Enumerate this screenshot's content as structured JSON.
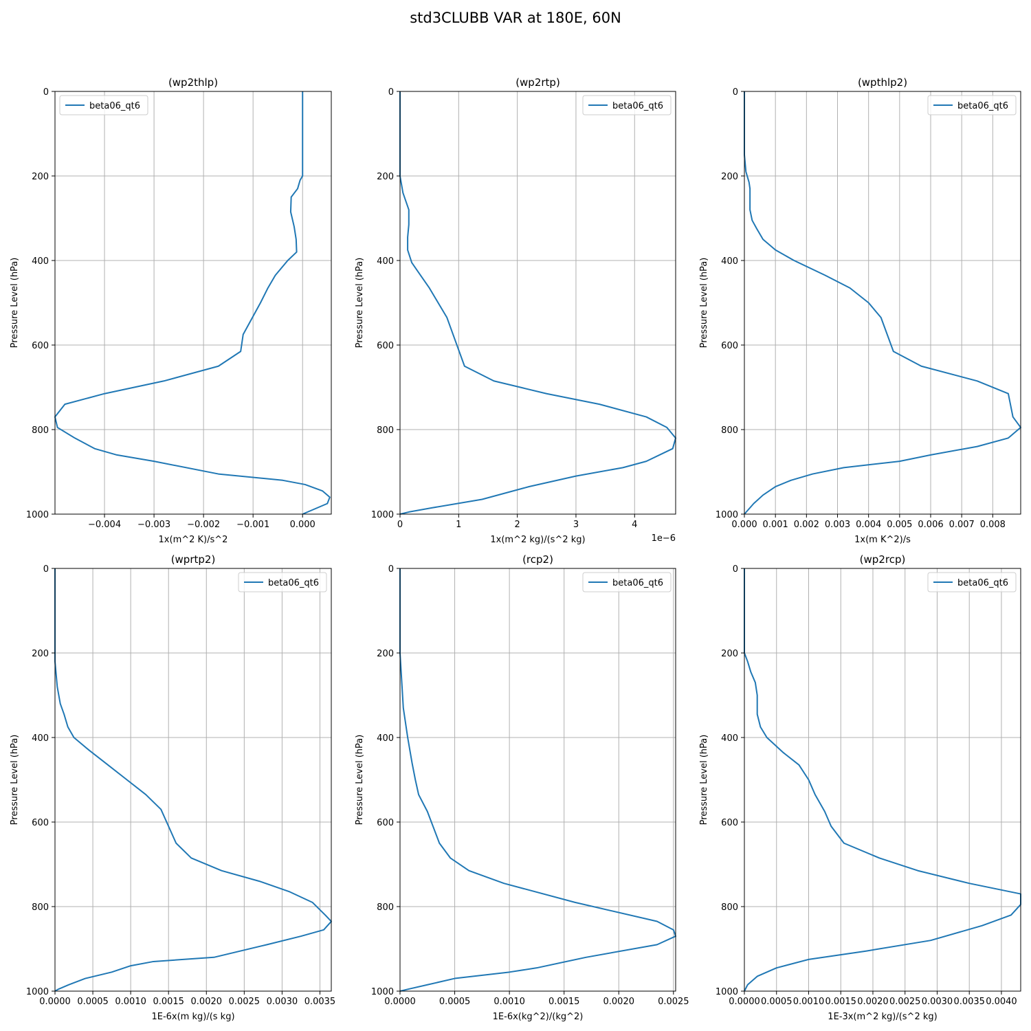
{
  "figure": {
    "title": "std3CLUBB VAR at 180E, 60N"
  },
  "chart_data": [
    {
      "type": "line",
      "title": "(wp2thlp)",
      "xlabel": "1x(m^2 K)/s^2",
      "ylabel": "Pressure Level (hPa)",
      "xlim": [
        -0.005,
        0.00058
      ],
      "ylim": [
        1000,
        0
      ],
      "xticks": [
        -0.004,
        -0.003,
        -0.002,
        -0.001,
        0.0
      ],
      "xtick_labels": [
        "−0.004",
        "−0.003",
        "−0.002",
        "−0.001",
        "0.000"
      ],
      "yticks": [
        0,
        200,
        400,
        600,
        800,
        1000
      ],
      "ytick_labels": [
        "0",
        "200",
        "400",
        "600",
        "800",
        "1000"
      ],
      "grid": true,
      "legend": "upper left",
      "series": [
        {
          "name": "beta06_qt6",
          "color": "#1f77b4",
          "x": [
            0.0,
            0.0,
            0.0,
            0.0,
            0.0,
            -5e-05,
            -0.0001,
            -0.00023,
            -0.00024,
            -0.00017,
            -0.00013,
            -0.00012,
            -0.0003,
            -0.00055,
            -0.0007,
            -0.00085,
            -0.0012,
            -0.00125,
            -0.0017,
            -0.0028,
            -0.004,
            -0.0048,
            -0.005,
            -0.00495,
            -0.0046,
            -0.0042,
            -0.00375,
            -0.003,
            -0.0017,
            -0.0004,
            5e-05,
            0.0004,
            0.00055,
            0.0005,
            0.0
          ],
          "y": [
            0,
            50,
            100,
            150,
            200,
            210,
            230,
            250,
            285,
            320,
            350,
            380,
            400,
            435,
            465,
            500,
            575,
            615,
            650,
            685,
            715,
            740,
            770,
            795,
            820,
            845,
            860,
            875,
            905,
            920,
            930,
            945,
            960,
            975,
            1000
          ]
        }
      ]
    },
    {
      "type": "line",
      "title": "(wp2rtp)",
      "xlabel": "1x(m^2 kg)/(s^2 kg)",
      "offset_text": "1e−6",
      "ylabel": "Pressure Level (hPa)",
      "xlim": [
        0,
        4.7
      ],
      "ylim": [
        1000,
        0
      ],
      "xticks": [
        0,
        1,
        2,
        3,
        4
      ],
      "xtick_labels": [
        "0",
        "1",
        "2",
        "3",
        "4"
      ],
      "yticks": [
        0,
        200,
        400,
        600,
        800,
        1000
      ],
      "ytick_labels": [
        "0",
        "200",
        "400",
        "600",
        "800",
        "1000"
      ],
      "grid": true,
      "legend": "upper right",
      "series": [
        {
          "name": "beta06_qt6",
          "color": "#1f77b4",
          "x": [
            0.0,
            0.0,
            0.0,
            0.0,
            0.0,
            0.05,
            0.15,
            0.15,
            0.13,
            0.13,
            0.2,
            0.35,
            0.5,
            0.65,
            0.8,
            1.1,
            1.6,
            2.5,
            3.4,
            4.2,
            4.55,
            4.7,
            4.65,
            4.5,
            4.2,
            3.8,
            3.0,
            2.2,
            1.4,
            0.55,
            0.15,
            0.0
          ],
          "y": [
            0,
            50,
            100,
            150,
            200,
            240,
            280,
            315,
            345,
            375,
            405,
            435,
            465,
            500,
            535,
            650,
            685,
            715,
            740,
            770,
            795,
            820,
            845,
            855,
            875,
            890,
            910,
            935,
            965,
            985,
            995,
            1000
          ]
        }
      ]
    },
    {
      "type": "line",
      "title": "(wpthlp2)",
      "xlabel": "1x(m K^2)/s",
      "ylabel": "Pressure Level (hPa)",
      "xlim": [
        0,
        0.0089
      ],
      "ylim": [
        1000,
        0
      ],
      "xticks": [
        0,
        0.001,
        0.002,
        0.003,
        0.004,
        0.005,
        0.006,
        0.007,
        0.008
      ],
      "xtick_labels": [
        "0.000",
        "0.001",
        "0.002",
        "0.003",
        "0.004",
        "0.005",
        "0.006",
        "0.007",
        "0.008"
      ],
      "yticks": [
        0,
        200,
        400,
        600,
        800,
        1000
      ],
      "ytick_labels": [
        "0",
        "200",
        "400",
        "600",
        "800",
        "1000"
      ],
      "grid": true,
      "legend": "upper right",
      "series": [
        {
          "name": "beta06_qt6",
          "color": "#1f77b4",
          "x": [
            0.0,
            0.0,
            0.0,
            5e-05,
            0.00015,
            0.00018,
            0.00018,
            0.00025,
            0.0004,
            0.0006,
            0.001,
            0.0016,
            0.0026,
            0.0034,
            0.004,
            0.0044,
            0.0046,
            0.0048,
            0.0057,
            0.0075,
            0.0085,
            0.00865,
            0.0089,
            0.0085,
            0.0075,
            0.006,
            0.005,
            0.0032,
            0.0022,
            0.0015,
            0.001,
            0.0006,
            0.0003,
            0.0
          ],
          "y": [
            0,
            100,
            150,
            190,
            215,
            230,
            280,
            305,
            325,
            350,
            375,
            400,
            435,
            465,
            500,
            535,
            575,
            615,
            650,
            685,
            715,
            770,
            795,
            820,
            840,
            860,
            875,
            890,
            905,
            920,
            935,
            955,
            975,
            1000
          ]
        }
      ]
    },
    {
      "type": "line",
      "title": "(wprtp2)",
      "xlabel": "1E-6x(m kg)/(s kg)",
      "ylabel": "Pressure Level (hPa)",
      "xlim": [
        0,
        0.00365
      ],
      "ylim": [
        1000,
        0
      ],
      "xticks": [
        0,
        0.0005,
        0.001,
        0.0015,
        0.002,
        0.0025,
        0.003,
        0.0035
      ],
      "xtick_labels": [
        "0.0000",
        "0.0005",
        "0.0010",
        "0.0015",
        "0.0020",
        "0.0025",
        "0.0030",
        "0.0035"
      ],
      "yticks": [
        0,
        200,
        400,
        600,
        800,
        1000
      ],
      "ytick_labels": [
        "0",
        "200",
        "400",
        "600",
        "800",
        "1000"
      ],
      "grid": true,
      "legend": "upper right",
      "series": [
        {
          "name": "beta06_qt6",
          "color": "#1f77b4",
          "x": [
            0.0,
            0.0,
            3e-05,
            7e-05,
            0.00012,
            0.00017,
            0.00025,
            0.00045,
            0.0007,
            0.00095,
            0.0012,
            0.0014,
            0.0015,
            0.0016,
            0.0018,
            0.0022,
            0.0027,
            0.0031,
            0.0034,
            0.00357,
            0.00365,
            0.00355,
            0.00325,
            0.0028,
            0.0021,
            0.0013,
            0.001,
            0.00075,
            0.0004,
            0.00018,
            5e-05,
            0.0
          ],
          "y": [
            0,
            220,
            280,
            320,
            345,
            375,
            400,
            430,
            465,
            500,
            535,
            570,
            610,
            650,
            685,
            715,
            740,
            765,
            790,
            820,
            835,
            855,
            870,
            890,
            920,
            930,
            940,
            955,
            970,
            985,
            995,
            1000
          ]
        }
      ]
    },
    {
      "type": "line",
      "title": "(rcp2)",
      "xlabel": "1E-6x(kg^2)/(kg^2)",
      "ylabel": "Pressure Level (hPa)",
      "xlim": [
        0,
        0.00252
      ],
      "ylim": [
        1000,
        0
      ],
      "xticks": [
        0,
        0.0005,
        0.001,
        0.0015,
        0.002,
        0.0025
      ],
      "xtick_labels": [
        "0.0000",
        "0.0005",
        "0.0010",
        "0.0015",
        "0.0020",
        "0.0025"
      ],
      "yticks": [
        0,
        200,
        400,
        600,
        800,
        1000
      ],
      "ytick_labels": [
        "0",
        "200",
        "400",
        "600",
        "800",
        "1000"
      ],
      "grid": true,
      "legend": "upper right",
      "series": [
        {
          "name": "beta06_qt6",
          "color": "#1f77b4",
          "x": [
            0.0,
            0.0,
            3e-05,
            7e-05,
            0.00011,
            0.00014,
            0.00017,
            0.00025,
            0.00036,
            0.00046,
            0.00063,
            0.00095,
            0.0016,
            0.00235,
            0.0025,
            0.00252,
            0.00235,
            0.0017,
            0.00125,
            0.001,
            0.0005,
            0.00025,
            8e-05,
            0.0
          ],
          "y": [
            0,
            200,
            330,
            400,
            460,
            500,
            535,
            575,
            650,
            685,
            715,
            745,
            790,
            835,
            855,
            870,
            890,
            920,
            945,
            955,
            970,
            985,
            995,
            1000
          ]
        }
      ]
    },
    {
      "type": "line",
      "title": "(wp2rcp)",
      "xlabel": "1E-3x(m^2 kg)/(s^2 kg)",
      "ylabel": "Pressure Level (hPa)",
      "xlim": [
        0,
        0.0043
      ],
      "ylim": [
        1000,
        0
      ],
      "xticks": [
        0,
        0.0005,
        0.001,
        0.0015,
        0.002,
        0.0025,
        0.003,
        0.0035,
        0.004
      ],
      "xtick_labels": [
        "0.0000",
        "0.0005",
        "0.0010",
        "0.0015",
        "0.0020",
        "0.0025",
        "0.0030",
        "0.0035",
        "0.0040"
      ],
      "yticks": [
        0,
        200,
        400,
        600,
        800,
        1000
      ],
      "ytick_labels": [
        "0",
        "200",
        "400",
        "600",
        "800",
        "1000"
      ],
      "grid": true,
      "legend": "upper right",
      "series": [
        {
          "name": "beta06_qt6",
          "color": "#1f77b4",
          "x": [
            0.0,
            0.0,
            5e-05,
            0.0001,
            0.00017,
            0.0002,
            0.0002,
            0.00025,
            0.00035,
            0.0006,
            0.00085,
            0.001,
            0.0011,
            0.00125,
            0.00135,
            0.00155,
            0.0021,
            0.0027,
            0.0035,
            0.0043,
            0.0043,
            0.00415,
            0.0037,
            0.0029,
            0.0019,
            0.001,
            0.0005,
            0.0002,
            5e-05,
            0.0
          ],
          "y": [
            0,
            200,
            220,
            245,
            270,
            300,
            345,
            375,
            400,
            435,
            465,
            500,
            535,
            575,
            610,
            650,
            685,
            715,
            745,
            770,
            795,
            820,
            845,
            880,
            905,
            925,
            945,
            965,
            985,
            1000
          ]
        }
      ]
    }
  ]
}
